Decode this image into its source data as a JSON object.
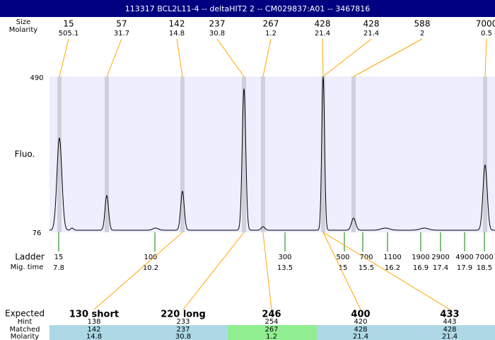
{
  "window": {
    "title": "113317  BCL2L11-4 -- deltaHIT2 2 -- CM029837:A01 -- 3467816"
  },
  "peaks": {
    "size_label": "Size",
    "molarity_label": "Molarity",
    "sizes": [
      15,
      57,
      142,
      237,
      267,
      428,
      428,
      588,
      7000
    ],
    "molarities": [
      "505.1",
      "31.7",
      "14.8",
      "30.8",
      "1.2",
      "21.4",
      "21.4",
      "2",
      "0.5"
    ]
  },
  "axis": {
    "y_label": "Fluo.",
    "top": "490",
    "bottom": "76"
  },
  "ladder": {
    "label": "Ladder",
    "time_label": "Mig. time",
    "sizes": [
      15,
      100,
      300,
      500,
      700,
      1100,
      1900,
      2900,
      4900,
      7000
    ],
    "times": [
      "7.8",
      "10.2",
      "13.5",
      "15",
      "15.5",
      "16.2",
      "16.9",
      "17.4",
      "17.9",
      "18.5"
    ]
  },
  "table": {
    "row_labels": [
      "Expected",
      "Hint",
      "Matched",
      "Molarity"
    ],
    "expected": [
      "130 short",
      "220 long",
      "246",
      "400",
      "433"
    ],
    "hint": [
      138,
      233,
      254,
      420,
      443
    ],
    "matched": [
      142,
      237,
      267,
      428,
      428
    ],
    "molarity": [
      "14.8",
      "30.8",
      "1.2",
      "21.4",
      "21.4"
    ]
  }
}
